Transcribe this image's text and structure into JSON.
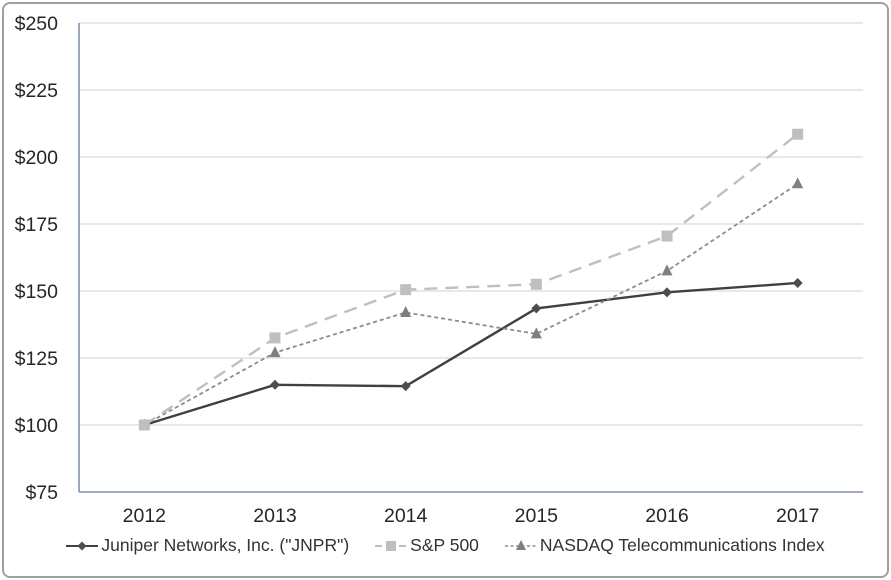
{
  "figure": {
    "title": "",
    "background_color": "#ffffff",
    "border_color": "#a0a0a0",
    "axis_color": "#8090ac",
    "gridline_color": "#d9d9d9",
    "tick_label_color": "#262626",
    "legend_text_color": "#333333"
  },
  "chart_data": {
    "type": "line",
    "title": "",
    "xlabel": "",
    "ylabel": "",
    "categories": [
      "2012",
      "2013",
      "2014",
      "2015",
      "2016",
      "2017"
    ],
    "series": [
      {
        "name": "Juniper Networks, Inc. (\"JNPR\")",
        "values": [
          100,
          115,
          114.5,
          143.5,
          149.5,
          153
        ],
        "color": "#404040",
        "marker": "diamond",
        "marker_color": "#4d4d4d",
        "line_style": "solid"
      },
      {
        "name": "S&P 500",
        "values": [
          100,
          132.5,
          150.5,
          152.5,
          170.5,
          208.5
        ],
        "color": "#bfbfbf",
        "marker": "square",
        "marker_color": "#bfbfbf",
        "line_style": "long-dash"
      },
      {
        "name": "NASDAQ Telecommunications Index",
        "values": [
          100,
          127,
          142,
          134,
          157.5,
          190
        ],
        "color": "#8c8c8c",
        "marker": "triangle",
        "marker_color": "#7f7f7f",
        "line_style": "short-dash"
      }
    ],
    "ylim": [
      75,
      250
    ],
    "ytick_step": 25,
    "ytick_labels": [
      "$75",
      "$100",
      "$125",
      "$150",
      "$175",
      "$200",
      "$225",
      "$250"
    ],
    "grid": true,
    "legend_position": "bottom"
  }
}
